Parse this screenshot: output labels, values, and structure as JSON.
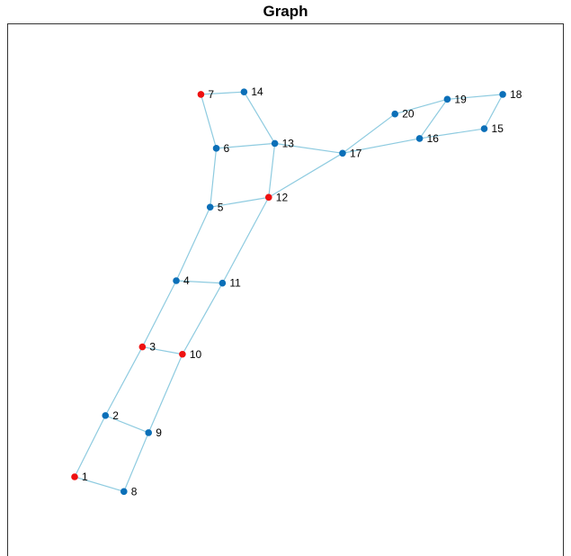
{
  "title": "Graph",
  "colors": {
    "edge": "#8ecbe0",
    "node_default": "#0b6fb8",
    "node_highlight": "#ee1111",
    "frame": "#333333"
  },
  "nodes": [
    {
      "id": "1",
      "x": 1.0,
      "y": 1.0,
      "color": "highlight"
    },
    {
      "id": "2",
      "x": 1.5,
      "y": 2.25,
      "color": "default"
    },
    {
      "id": "3",
      "x": 2.1,
      "y": 3.65,
      "color": "highlight"
    },
    {
      "id": "4",
      "x": 2.65,
      "y": 5.0,
      "color": "default"
    },
    {
      "id": "5",
      "x": 3.2,
      "y": 6.5,
      "color": "default"
    },
    {
      "id": "6",
      "x": 3.3,
      "y": 7.7,
      "color": "default"
    },
    {
      "id": "7",
      "x": 3.05,
      "y": 8.8,
      "color": "highlight"
    },
    {
      "id": "8",
      "x": 1.8,
      "y": 0.7,
      "color": "default"
    },
    {
      "id": "9",
      "x": 2.2,
      "y": 1.9,
      "color": "default"
    },
    {
      "id": "10",
      "x": 2.75,
      "y": 3.5,
      "color": "highlight"
    },
    {
      "id": "11",
      "x": 3.4,
      "y": 4.95,
      "color": "default"
    },
    {
      "id": "12",
      "x": 4.15,
      "y": 6.7,
      "color": "highlight"
    },
    {
      "id": "13",
      "x": 4.25,
      "y": 7.8,
      "color": "default"
    },
    {
      "id": "14",
      "x": 3.75,
      "y": 8.85,
      "color": "default"
    },
    {
      "id": "15",
      "x": 7.65,
      "y": 8.1,
      "color": "default"
    },
    {
      "id": "16",
      "x": 6.6,
      "y": 7.9,
      "color": "default"
    },
    {
      "id": "17",
      "x": 5.35,
      "y": 7.6,
      "color": "default"
    },
    {
      "id": "18",
      "x": 7.95,
      "y": 8.8,
      "color": "default"
    },
    {
      "id": "19",
      "x": 7.05,
      "y": 8.7,
      "color": "default"
    },
    {
      "id": "20",
      "x": 6.2,
      "y": 8.4,
      "color": "default"
    }
  ],
  "edges": [
    [
      "1",
      "2"
    ],
    [
      "1",
      "8"
    ],
    [
      "2",
      "3"
    ],
    [
      "2",
      "9"
    ],
    [
      "3",
      "4"
    ],
    [
      "3",
      "10"
    ],
    [
      "4",
      "5"
    ],
    [
      "4",
      "11"
    ],
    [
      "5",
      "6"
    ],
    [
      "5",
      "12"
    ],
    [
      "6",
      "7"
    ],
    [
      "6",
      "13"
    ],
    [
      "7",
      "14"
    ],
    [
      "8",
      "9"
    ],
    [
      "9",
      "10"
    ],
    [
      "10",
      "11"
    ],
    [
      "11",
      "12"
    ],
    [
      "12",
      "13"
    ],
    [
      "12",
      "17"
    ],
    [
      "13",
      "14"
    ],
    [
      "13",
      "17"
    ],
    [
      "17",
      "20"
    ],
    [
      "17",
      "16"
    ],
    [
      "20",
      "19"
    ],
    [
      "19",
      "18"
    ],
    [
      "19",
      "16"
    ],
    [
      "16",
      "15"
    ],
    [
      "15",
      "18"
    ]
  ]
}
